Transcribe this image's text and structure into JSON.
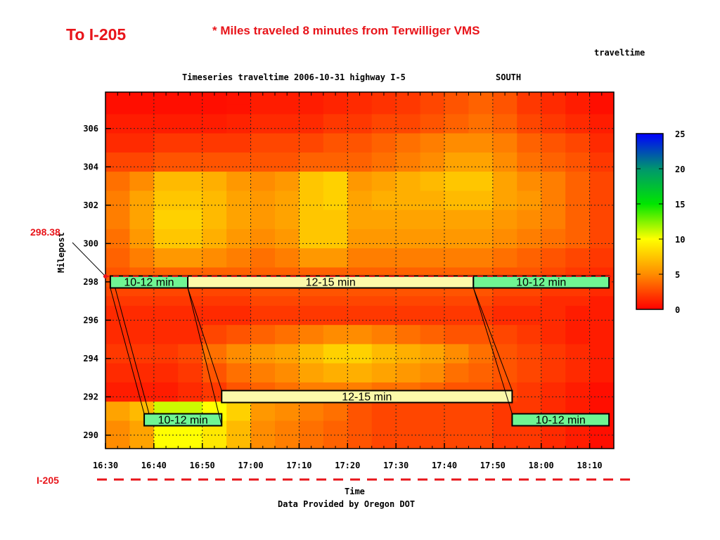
{
  "header": {
    "to_title": "To I-205",
    "subtitle": "* Miles traveled 8 minutes from Terwilliger VMS"
  },
  "chart_data": {
    "type": "heatmap",
    "title": "Timeseries traveltime 2006-10-31 highway I-5",
    "direction": "SOUTH",
    "colorbar_label": "traveltime",
    "xlabel": "Time",
    "ylabel": "Milepost",
    "credit": "Data Provided by Oregon DOT",
    "x_ticks": [
      "16:30",
      "16:40",
      "16:50",
      "17:00",
      "17:10",
      "17:20",
      "17:30",
      "17:40",
      "17:50",
      "18:00",
      "18:10"
    ],
    "y_ticks": [
      306,
      304,
      302,
      300,
      298,
      296,
      294,
      292,
      290
    ],
    "xlim": [
      "16:30",
      "18:15"
    ],
    "ylim": [
      289.3,
      307.9
    ],
    "colorbar": {
      "ticks": [
        25,
        20,
        15,
        10,
        5,
        0
      ],
      "range": [
        0,
        25
      ]
    },
    "grid": true,
    "time_columns": [
      "16:30",
      "16:35",
      "16:40",
      "16:45",
      "16:50",
      "16:55",
      "17:00",
      "17:05",
      "17:10",
      "17:15",
      "17:20",
      "17:25",
      "17:30",
      "17:35",
      "17:40",
      "17:45",
      "17:50",
      "17:55",
      "18:00",
      "18:05",
      "18:10"
    ],
    "milepost_rows": [
      307.5,
      307,
      306.5,
      306,
      305.5,
      305,
      304.5,
      304,
      303.5,
      303,
      302.5,
      302,
      301.5,
      301,
      300.5,
      300,
      299.5,
      299,
      298.5,
      298,
      297.5,
      297,
      296.5,
      296,
      295.5,
      295,
      294.5,
      294,
      293.5,
      293,
      292.5,
      292,
      291.5,
      291,
      290.5,
      290,
      289.6
    ],
    "values": [
      [
        0.5,
        0.5,
        0.5,
        0.5,
        0.5,
        0.6,
        1,
        1,
        1,
        1.3,
        1.5,
        1.8,
        2,
        2.5,
        3,
        3.5,
        3,
        2,
        1.5,
        1,
        0.5
      ],
      [
        0.5,
        0.5,
        0.5,
        0.5,
        0.5,
        0.6,
        1,
        1,
        1,
        1.3,
        1.5,
        1.8,
        2,
        2.5,
        3,
        3.5,
        3,
        2,
        1.5,
        1,
        0.5
      ],
      [
        1,
        1,
        1,
        1,
        1,
        1.2,
        1.5,
        1.5,
        1.5,
        2,
        2,
        2.5,
        2.5,
        3,
        3.5,
        4,
        3.5,
        2.5,
        2,
        1.5,
        1
      ],
      [
        1,
        1,
        1,
        1,
        1,
        1.2,
        1.5,
        1.5,
        1.5,
        2,
        2,
        2.5,
        2.5,
        3,
        3.5,
        4,
        3.5,
        2.5,
        2,
        1.5,
        1
      ],
      [
        1.5,
        1.5,
        2,
        2,
        2,
        2,
        2.5,
        2.5,
        2.5,
        3,
        3,
        3.5,
        4,
        4.5,
        5,
        5,
        4.5,
        3.5,
        3,
        2.5,
        1.5
      ],
      [
        1.5,
        1.5,
        2,
        2,
        2,
        2,
        2.5,
        2.5,
        2.5,
        3,
        3,
        3.5,
        4,
        4.5,
        5,
        5,
        4.5,
        3.5,
        3,
        2.5,
        1.5
      ],
      [
        2.5,
        2.5,
        3,
        3,
        3,
        3,
        3,
        3,
        3.5,
        3.5,
        3.5,
        4,
        4.5,
        5,
        6,
        6,
        5,
        4,
        3.5,
        3,
        2
      ],
      [
        2.5,
        2.5,
        3,
        3,
        3,
        3,
        3,
        3,
        3.5,
        3.5,
        3.5,
        4,
        4.5,
        5,
        6,
        6,
        5,
        4,
        3.5,
        3,
        2
      ],
      [
        4,
        5,
        7,
        7,
        6.5,
        5.5,
        5,
        5.5,
        7.5,
        8,
        5.5,
        6,
        6.5,
        7,
        7.5,
        7.5,
        6,
        5,
        4.5,
        3.5,
        2.5
      ],
      [
        4,
        5,
        7,
        7,
        6.5,
        5.5,
        5,
        5.5,
        7.5,
        8,
        5.5,
        6,
        6.5,
        7,
        7.5,
        7.5,
        6,
        5,
        4.5,
        3.5,
        2.5
      ],
      [
        4.5,
        6,
        7.5,
        7.5,
        7,
        6,
        5.5,
        6,
        7.5,
        8,
        6,
        6.5,
        6.5,
        6.5,
        7,
        7,
        6,
        5.5,
        4.5,
        3.5,
        2.5
      ],
      [
        4.5,
        6,
        7.5,
        7.5,
        7,
        6,
        5.5,
        6,
        7.5,
        8,
        6,
        6.5,
        6.5,
        6.5,
        7,
        7,
        6,
        5.5,
        4.5,
        3.5,
        2.5
      ],
      [
        4.5,
        6,
        8,
        8,
        7,
        6,
        5.5,
        6,
        7.5,
        7.5,
        6,
        6,
        6,
        6,
        6,
        6,
        5.5,
        5,
        4.5,
        3.5,
        2.5
      ],
      [
        4.5,
        6,
        8,
        8,
        7,
        6,
        5.5,
        6,
        7.5,
        7.5,
        6,
        6,
        6,
        6,
        6,
        6,
        5.5,
        5,
        4.5,
        3.5,
        2.5
      ],
      [
        4,
        5.5,
        7.5,
        7.5,
        6.5,
        5.5,
        5,
        5.5,
        7.5,
        7.5,
        5.5,
        5.5,
        5.5,
        5.5,
        5.5,
        5.5,
        5,
        4.5,
        4,
        3.5,
        2.5
      ],
      [
        4,
        5.5,
        7.5,
        7.5,
        6.5,
        5.5,
        5,
        5.5,
        7.5,
        7.5,
        5.5,
        5.5,
        5.5,
        5.5,
        5.5,
        5.5,
        5,
        4.5,
        4,
        3.5,
        2.5
      ],
      [
        3.5,
        4.5,
        5.5,
        5.5,
        5,
        4.5,
        4,
        4.5,
        5.5,
        5.5,
        4.5,
        4.5,
        4.5,
        4.5,
        4.5,
        4.5,
        4,
        3.5,
        3,
        2.5,
        2
      ],
      [
        3.5,
        4.5,
        5.5,
        5.5,
        5,
        4.5,
        4,
        4.5,
        5.5,
        5.5,
        4.5,
        4.5,
        4.5,
        4.5,
        4.5,
        4.5,
        4,
        3.5,
        3,
        2.5,
        2
      ],
      [
        3,
        3.5,
        3.5,
        3.5,
        3.5,
        3.5,
        3.5,
        3.5,
        3.5,
        3.5,
        3.5,
        3.5,
        3.5,
        3.5,
        3.5,
        3.5,
        3,
        3,
        2.5,
        2,
        1.5
      ],
      [
        3,
        3.5,
        3.5,
        3.5,
        3.5,
        3.5,
        3.5,
        3.5,
        3.5,
        3.5,
        3.5,
        3.5,
        3.5,
        3.5,
        3.5,
        3.5,
        3,
        3,
        2.5,
        2,
        1.5
      ],
      [
        2.5,
        2.5,
        2.5,
        2.5,
        2.5,
        2.5,
        3,
        3,
        3,
        3,
        3,
        3,
        3,
        3,
        3,
        3,
        2.5,
        2.5,
        2,
        2,
        1.5
      ],
      [
        2,
        2,
        2,
        2,
        2,
        2,
        2.5,
        2.5,
        2.5,
        2.5,
        2.5,
        2.5,
        2.5,
        2.5,
        2.5,
        2.5,
        2,
        2,
        1.5,
        1.5,
        1
      ],
      [
        1.5,
        1.5,
        1.5,
        1.5,
        1.5,
        1.5,
        2,
        2,
        2,
        2,
        2,
        2,
        2,
        2,
        2,
        2,
        1.5,
        1.5,
        1.5,
        1,
        1
      ],
      [
        1.5,
        1.5,
        1.5,
        1.5,
        1.5,
        1.5,
        2,
        2,
        2,
        2,
        2,
        2,
        2,
        2,
        2,
        2,
        1.5,
        1.5,
        1.5,
        1,
        1
      ],
      [
        1.5,
        1.5,
        1.5,
        1.5,
        2.5,
        3,
        3.5,
        4,
        4.5,
        5,
        5,
        4.5,
        4,
        3.5,
        3,
        3,
        2.5,
        2,
        1.5,
        1,
        1
      ],
      [
        1.5,
        1.5,
        1.5,
        1.5,
        2.5,
        3,
        3.5,
        4,
        4.5,
        5,
        5,
        4.5,
        4,
        3.5,
        3,
        3,
        2.5,
        2,
        1.5,
        1,
        1
      ],
      [
        2,
        2,
        2,
        2.5,
        4,
        5,
        5.5,
        6,
        7,
        8,
        8,
        7,
        6.5,
        6,
        5,
        4,
        3,
        2.5,
        2,
        1.5,
        1
      ],
      [
        2,
        2,
        2,
        2.5,
        4,
        5,
        5.5,
        6,
        7,
        8,
        8,
        7,
        6.5,
        6,
        5,
        4,
        3,
        2.5,
        2,
        1.5,
        1
      ],
      [
        1.5,
        1.5,
        1.5,
        2,
        3,
        4,
        4.5,
        5,
        6,
        6.5,
        6.5,
        6,
        5.5,
        5,
        4,
        3.5,
        3,
        2.5,
        2,
        1.5,
        1
      ],
      [
        1.5,
        1.5,
        1.5,
        2,
        3,
        4,
        4.5,
        5,
        6,
        6.5,
        6.5,
        6,
        5.5,
        5,
        4,
        3.5,
        3,
        2.5,
        2,
        1.5,
        1
      ],
      [
        1,
        1,
        1,
        1.5,
        2,
        3,
        3.5,
        4,
        4.5,
        4.5,
        4.5,
        4,
        4,
        3.5,
        3,
        3,
        2.5,
        2,
        1.5,
        1,
        0.5
      ],
      [
        1,
        1,
        1,
        1.5,
        2,
        3,
        3.5,
        4,
        4.5,
        4.5,
        4.5,
        4,
        4,
        3.5,
        3,
        3,
        2.5,
        2,
        1.5,
        1,
        0.5
      ],
      [
        6,
        7,
        11,
        11,
        10,
        8,
        5.5,
        5,
        4.5,
        4,
        3,
        2.5,
        2.5,
        2.5,
        2.5,
        2.5,
        2,
        2,
        1.5,
        1,
        0.5
      ],
      [
        6,
        7,
        11,
        11,
        10,
        8,
        5.5,
        5,
        4.5,
        4,
        3,
        2.5,
        2.5,
        2.5,
        2.5,
        2.5,
        2,
        2,
        1.5,
        1,
        0.5
      ],
      [
        5,
        6,
        10,
        10,
        9,
        7,
        5,
        4.5,
        4,
        3.5,
        3,
        2.5,
        2.5,
        2.5,
        2.5,
        2.5,
        2,
        2,
        1.5,
        1,
        0.5
      ],
      [
        5,
        6,
        10,
        10,
        9,
        7,
        5,
        4.5,
        4,
        3.5,
        3,
        2.5,
        2.5,
        2.5,
        2.5,
        2.5,
        2,
        2,
        1.5,
        1,
        0.5
      ],
      [
        5,
        6,
        10,
        10,
        9,
        7,
        5,
        4.5,
        4,
        3.5,
        3,
        2.5,
        2.5,
        2.5,
        2.5,
        2.5,
        2,
        2,
        1.5,
        1,
        0.5
      ]
    ],
    "annotations": [
      {
        "label": "10-12 min",
        "row": "upper",
        "t_start": "16:31",
        "t_end": "16:47",
        "fill": "#6ff593"
      },
      {
        "label": "12-15 min",
        "row": "upper",
        "t_start": "16:47",
        "t_end": "17:46",
        "fill": "#fcf9a9"
      },
      {
        "label": "10-12 min",
        "row": "upper",
        "t_start": "17:46",
        "t_end": "18:14",
        "fill": "#6ff593"
      },
      {
        "label": "12-15 min",
        "row": "middle",
        "t_start": "16:54",
        "t_end": "17:54",
        "fill": "#fcf9a9"
      },
      {
        "label": "10-12 min",
        "row": "lower",
        "t_start": "16:38",
        "t_end": "16:54",
        "fill": "#6ff593"
      },
      {
        "label": "10-12 min",
        "row": "lower",
        "t_start": "17:54",
        "t_end": "18:14",
        "fill": "#6ff593"
      }
    ],
    "milepost_callout": "298.38",
    "i205_label": "I-205"
  },
  "colors": {
    "highlight": "#e8141a",
    "band_green": "#6ff593",
    "band_yellow": "#fcf9a9"
  }
}
